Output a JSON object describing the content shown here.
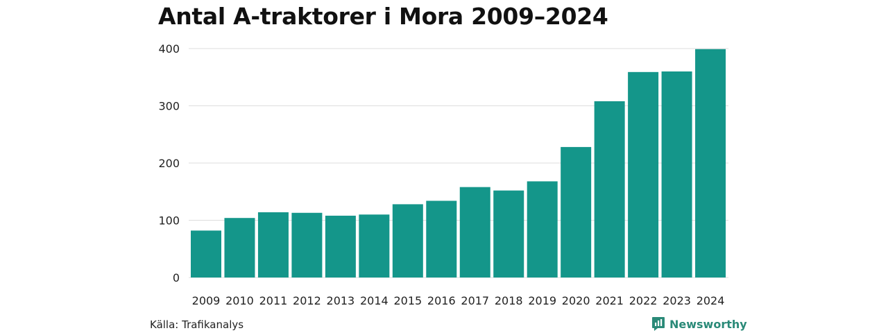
{
  "chart_data": {
    "type": "bar",
    "title": "Antal A-traktorer i Mora 2009–2024",
    "categories": [
      "2009",
      "2010",
      "2011",
      "2012",
      "2013",
      "2014",
      "2015",
      "2016",
      "2017",
      "2018",
      "2019",
      "2020",
      "2021",
      "2022",
      "2023",
      "2024"
    ],
    "values": [
      82,
      104,
      114,
      113,
      108,
      110,
      128,
      134,
      158,
      152,
      168,
      228,
      308,
      359,
      360,
      399
    ],
    "ylim": [
      0,
      400
    ],
    "yticks": [
      0,
      100,
      200,
      300,
      400
    ],
    "grid": true,
    "legend": "none",
    "bar_color": "#14968a",
    "grid_color": "#dddddd"
  },
  "footer": {
    "source": "Källa: Trafikanalys",
    "brand": "Newsworthy",
    "brand_color": "#2a8a78",
    "brand_icon": "newsworthy-logo-icon"
  }
}
